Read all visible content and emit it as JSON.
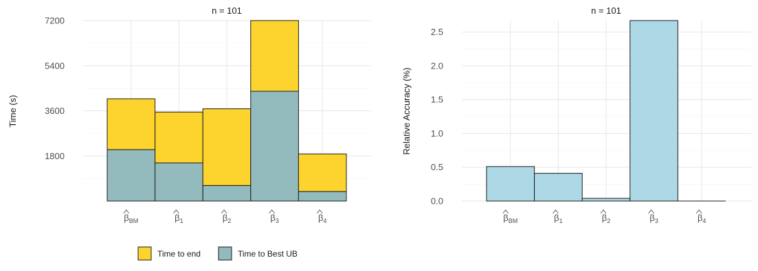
{
  "chart_data": [
    {
      "type": "bar",
      "stacked": true,
      "title": "n = 101",
      "xlabel": "",
      "ylabel": "Time (s)",
      "categories": [
        {
          "base": "β",
          "sub": "BM"
        },
        {
          "base": "β",
          "sub": "1"
        },
        {
          "base": "β",
          "sub": "2"
        },
        {
          "base": "β",
          "sub": "3"
        },
        {
          "base": "β",
          "sub": "4"
        }
      ],
      "yticks": [
        1800,
        3600,
        5400,
        7200
      ],
      "ylim": [
        0,
        7200
      ],
      "grid": true,
      "series": [
        {
          "name": "Time to Best UB",
          "color": "#93BABD",
          "values": [
            2050,
            1520,
            620,
            4380,
            380
          ]
        },
        {
          "name": "Time to end",
          "color": "#FDD32E",
          "values": [
            2030,
            2030,
            3060,
            2820,
            1500
          ]
        }
      ]
    },
    {
      "type": "bar",
      "title": "n = 101",
      "xlabel": "",
      "ylabel": "Relative Accuracy (%)",
      "categories": [
        {
          "base": "β",
          "sub": "BM"
        },
        {
          "base": "β",
          "sub": "1"
        },
        {
          "base": "β",
          "sub": "2"
        },
        {
          "base": "β",
          "sub": "3"
        },
        {
          "base": "β",
          "sub": "4"
        }
      ],
      "yticks": [
        0.0,
        0.5,
        1.0,
        1.5,
        2.0,
        2.5
      ],
      "ytick_labels": [
        "0.0",
        "0.5",
        "1.0",
        "1.5",
        "2.0",
        "2.5"
      ],
      "ylim": [
        0,
        2.67
      ],
      "grid": true,
      "color": "#ADD8E6",
      "values": [
        0.51,
        0.41,
        0.04,
        2.67,
        0.0
      ]
    }
  ],
  "legend": {
    "placement": "bottom",
    "items": [
      {
        "label": "Time to end",
        "color": "#FDD32E"
      },
      {
        "label": "Time to Best UB",
        "color": "#93BABD"
      }
    ]
  }
}
